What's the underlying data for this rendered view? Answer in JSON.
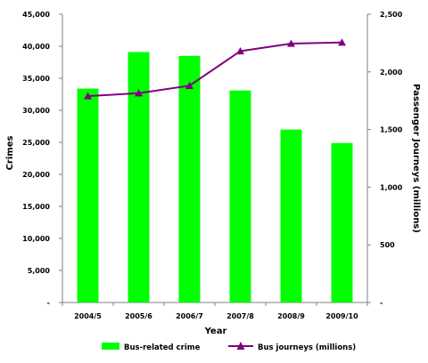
{
  "chart_data": {
    "type": "bar",
    "categories": [
      "2004/5",
      "2005/6",
      "2006/7",
      "2007/8",
      "2008/9",
      "2009/10"
    ],
    "xlabel": "Year",
    "ylabel": "Crimes",
    "y2label": "Passenger Journeys (millions)",
    "ylim": [
      0,
      45000
    ],
    "y2lim": [
      0,
      2500
    ],
    "yticks": [
      "-",
      "5,000",
      "10,000",
      "15,000",
      "20,000",
      "25,000",
      "30,000",
      "35,000",
      "40,000",
      "45,000"
    ],
    "y2ticks": [
      "-",
      "500",
      "1,000",
      "1,500",
      "2,000",
      "2,500"
    ],
    "legend_position": "bottom",
    "grid": false,
    "series": [
      {
        "name": "Bus-related crime",
        "type": "bar",
        "axis": "left",
        "color": "#00ff00",
        "values": [
          33400,
          39100,
          38500,
          33100,
          27000,
          24900
        ]
      },
      {
        "name": "Bus journeys (millions)",
        "type": "line",
        "axis": "right",
        "color": "#7f007f",
        "marker": "triangle",
        "values": [
          1790,
          1815,
          1880,
          2180,
          2245,
          2255
        ]
      }
    ]
  }
}
